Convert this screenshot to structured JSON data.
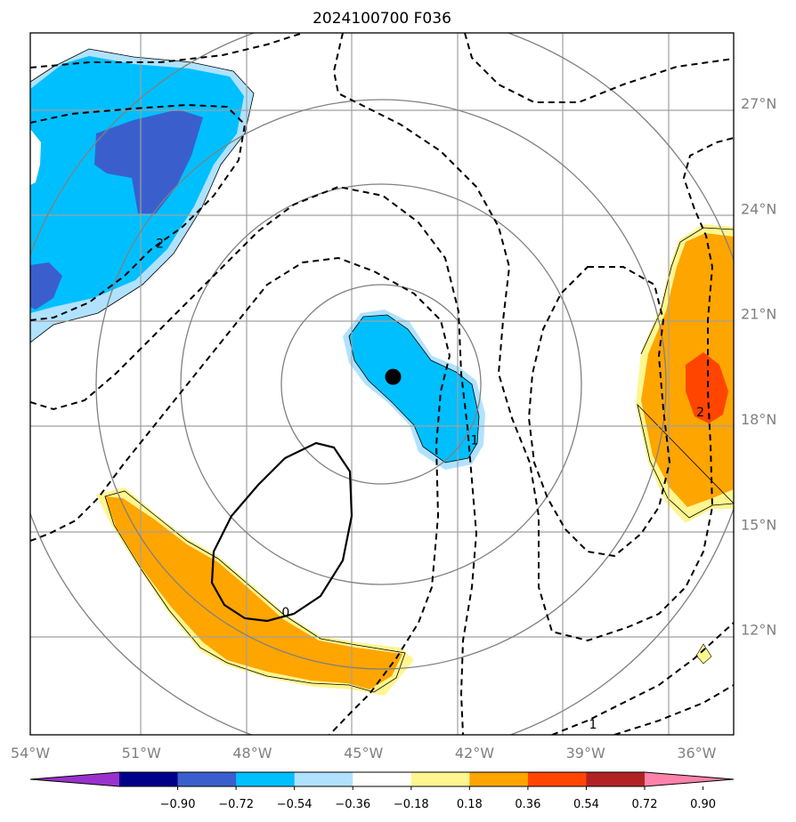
{
  "title": "2024100700 F036",
  "map": {
    "lon_range": [
      -54,
      -35
    ],
    "lat_range": [
      9,
      29
    ],
    "lon_ticks": [
      {
        "value": -54,
        "label": "54°W"
      },
      {
        "value": -51,
        "label": "51°W"
      },
      {
        "value": -48,
        "label": "48°W"
      },
      {
        "value": -45,
        "label": "45°W"
      },
      {
        "value": -42,
        "label": "42°W"
      },
      {
        "value": -39,
        "label": "39°W"
      },
      {
        "value": -36,
        "label": "36°W"
      }
    ],
    "lat_ticks": [
      {
        "value": 27,
        "label": "27°N"
      },
      {
        "value": 24,
        "label": "24°N"
      },
      {
        "value": 21,
        "label": "21°N"
      },
      {
        "value": 18,
        "label": "18°N"
      },
      {
        "value": 15,
        "label": "15°N"
      },
      {
        "value": 12,
        "label": "12°N"
      }
    ],
    "center_marker": {
      "lon": -44.2,
      "lat": 19.2,
      "color": "#000000"
    },
    "contour_labels": [
      {
        "text": "2",
        "lon": -50.5,
        "lat": 23.0
      },
      {
        "text": "1",
        "lon": -42.0,
        "lat": 17.4
      },
      {
        "text": "2",
        "lon": -35.9,
        "lat": 18.2
      },
      {
        "text": "0",
        "lon": -47.1,
        "lat": 12.5
      },
      {
        "text": "1",
        "lon": -38.8,
        "lat": 9.3
      }
    ]
  },
  "colorbar": {
    "colors": [
      "#9932cc",
      "#00008b",
      "#3a5fcd",
      "#00bfff",
      "#b0e2ff",
      "#ffffff",
      "#fff68f",
      "#ffa500",
      "#ff4500",
      "#b22222",
      "#ff82ab"
    ],
    "tick_labels": [
      "−0.90",
      "−0.72",
      "−0.54",
      "−0.36",
      "−0.18",
      "0.18",
      "0.36",
      "0.54",
      "0.72",
      "0.90"
    ]
  }
}
